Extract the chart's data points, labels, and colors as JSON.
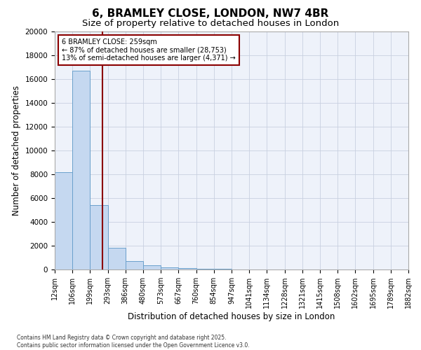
{
  "title": "6, BRAMLEY CLOSE, LONDON, NW7 4BR",
  "subtitle": "Size of property relative to detached houses in London",
  "xlabel": "Distribution of detached houses by size in London",
  "ylabel": "Number of detached properties",
  "footnote": "Contains HM Land Registry data © Crown copyright and database right 2025.\nContains public sector information licensed under the Open Government Licence v3.0.",
  "bin_labels": [
    "12sqm",
    "106sqm",
    "199sqm",
    "293sqm",
    "386sqm",
    "480sqm",
    "573sqm",
    "667sqm",
    "760sqm",
    "854sqm",
    "947sqm",
    "1041sqm",
    "1134sqm",
    "1228sqm",
    "1321sqm",
    "1415sqm",
    "1508sqm",
    "1602sqm",
    "1695sqm",
    "1789sqm",
    "1882sqm"
  ],
  "bar_heights": [
    8200,
    16700,
    5400,
    1800,
    700,
    350,
    200,
    100,
    60,
    40,
    25,
    18,
    12,
    10,
    8,
    6,
    5,
    4,
    3,
    3
  ],
  "n_bins": 20,
  "property_bin": 2.7,
  "bar_color": "#c5d8f0",
  "bar_edgecolor": "#6aa0cc",
  "vline_color": "#8b0000",
  "annotation_text": "6 BRAMLEY CLOSE: 259sqm\n← 87% of detached houses are smaller (28,753)\n13% of semi-detached houses are larger (4,371) →",
  "annotation_box_color": "#8b0000",
  "ylim": [
    0,
    20000
  ],
  "yticks": [
    0,
    2000,
    4000,
    6000,
    8000,
    10000,
    12000,
    14000,
    16000,
    18000,
    20000
  ],
  "grid_color": "#c8d0e0",
  "bg_color": "#eef2fa",
  "title_fontsize": 11,
  "subtitle_fontsize": 9.5,
  "axis_fontsize": 8.5,
  "tick_fontsize": 7.5,
  "annot_fontsize": 7
}
